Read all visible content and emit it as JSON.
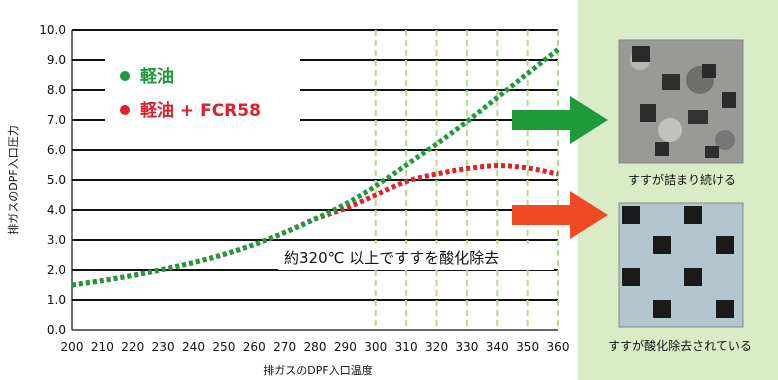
{
  "chart_data": {
    "type": "line",
    "xlabel": "排ガスのDPF入口温度",
    "ylabel": "排ガスのDPF入口圧力",
    "xlim": [
      200,
      360
    ],
    "ylim": [
      0,
      10
    ],
    "x_ticks": [
      "200",
      "210",
      "220",
      "230",
      "240",
      "250",
      "260",
      "270",
      "280",
      "290",
      "300",
      "310",
      "320",
      "330",
      "340",
      "350",
      "360"
    ],
    "y_ticks": [
      "0.0",
      "1.0",
      "2.0",
      "3.0",
      "4.0",
      "5.0",
      "6.0",
      "7.0",
      "8.0",
      "9.0",
      "10.0"
    ],
    "series": [
      {
        "name": "軽油",
        "color": "#1f9a3a",
        "x": [
          200,
          210,
          220,
          230,
          240,
          250,
          260,
          270,
          280,
          290,
          300,
          310,
          320,
          330,
          340,
          350,
          360
        ],
        "y": [
          1.5,
          1.65,
          1.82,
          2.02,
          2.25,
          2.52,
          2.85,
          3.25,
          3.7,
          4.2,
          4.8,
          5.5,
          6.2,
          6.95,
          7.75,
          8.55,
          9.35
        ]
      },
      {
        "name": "軽油 + FCR58",
        "color": "#e0202a",
        "x": [
          200,
          210,
          220,
          230,
          240,
          250,
          260,
          270,
          280,
          290,
          300,
          310,
          320,
          330,
          340,
          350,
          360
        ],
        "y": [
          1.5,
          1.65,
          1.82,
          2.02,
          2.25,
          2.52,
          2.85,
          3.25,
          3.7,
          4.05,
          4.5,
          4.95,
          5.2,
          5.38,
          5.48,
          5.4,
          5.2
        ]
      }
    ],
    "annotation": "約320℃ 以上ですすを酸化除去",
    "highlight_start_x": 300,
    "grid": "horizontal"
  },
  "photos": {
    "top_caption": "すすが詰まり続ける",
    "bottom_caption": "すすが酸化除去されている"
  },
  "arrows": {
    "top_color": "#1f9a3a",
    "bottom_color": "#f04a24"
  }
}
